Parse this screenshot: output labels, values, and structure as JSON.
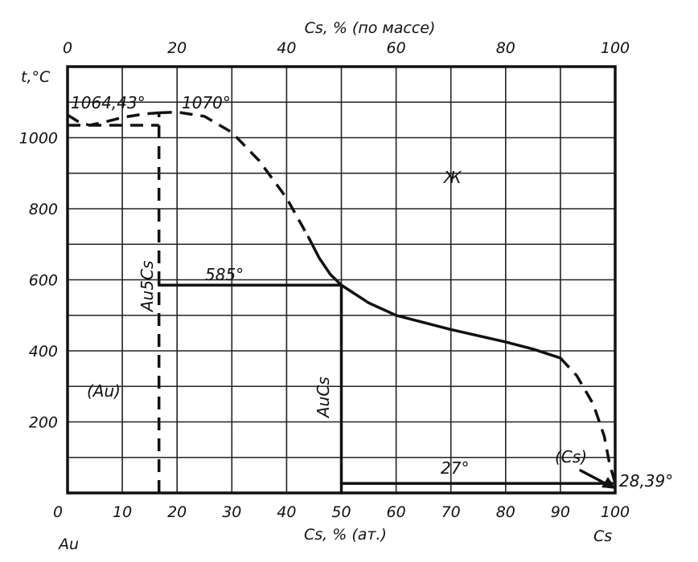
{
  "chart_data": {
    "type": "line",
    "title": "",
    "xlabel": "Cs, % (ат.)",
    "xlabel_top": "Cs, % (по массе)",
    "ylabel": "t,°C",
    "xlim": [
      0,
      100
    ],
    "ylim": [
      0,
      1200
    ],
    "grid": true,
    "x_ticks": [
      "0",
      "10",
      "20",
      "30",
      "40",
      "50",
      "60",
      "70",
      "80",
      "90",
      "100"
    ],
    "x_ticks_top": [
      "0",
      "20",
      "40",
      "60",
      "80",
      "100"
    ],
    "y_ticks": [
      "200",
      "400",
      "600",
      "800",
      "1000"
    ],
    "x_left_element": "Au",
    "x_right_element": "Cs",
    "annotations": {
      "au_melt": "1064,43°",
      "au5cs_melt": "1070°",
      "peritectic": "585°",
      "eutectic": "27°",
      "cs_melt": "28,39°",
      "liquid": "Ж",
      "au_phase": "(Au)",
      "cs_phase": "(Cs)",
      "au5cs": "Au5Cs",
      "aucs": "AuCs"
    },
    "series": [
      {
        "style": "dashed",
        "x": [
          0,
          2,
          4,
          7,
          10,
          14,
          16.7
        ],
        "y": [
          1064,
          1045,
          1035,
          1045,
          1057,
          1067,
          1070
        ]
      },
      {
        "style": "dashed",
        "x": [
          16.7,
          20,
          25,
          30,
          35,
          40,
          44
        ],
        "y": [
          1070,
          1072,
          1060,
          1015,
          935,
          830,
          720
        ]
      },
      {
        "style": "solid",
        "x": [
          44,
          46,
          48,
          50,
          55,
          60,
          70,
          80,
          85,
          90
        ],
        "y": [
          720,
          660,
          615,
          585,
          535,
          500,
          460,
          425,
          405,
          380
        ]
      },
      {
        "style": "dashed",
        "x": [
          90,
          93,
          96,
          98,
          99,
          100
        ],
        "y": [
          380,
          330,
          250,
          160,
          80,
          28
        ]
      },
      {
        "style": "dashed",
        "x": [
          0,
          16.7
        ],
        "y": [
          1035,
          1035
        ]
      },
      {
        "style": "dashed",
        "x": [
          16.7,
          16.7
        ],
        "y": [
          0,
          1070
        ]
      },
      {
        "style": "solid",
        "x": [
          16.7,
          50
        ],
        "y": [
          585,
          585
        ]
      },
      {
        "style": "solid",
        "x": [
          50,
          50
        ],
        "y": [
          0,
          585
        ]
      },
      {
        "style": "solid",
        "x": [
          50,
          99.5
        ],
        "y": [
          27,
          27
        ]
      }
    ]
  }
}
